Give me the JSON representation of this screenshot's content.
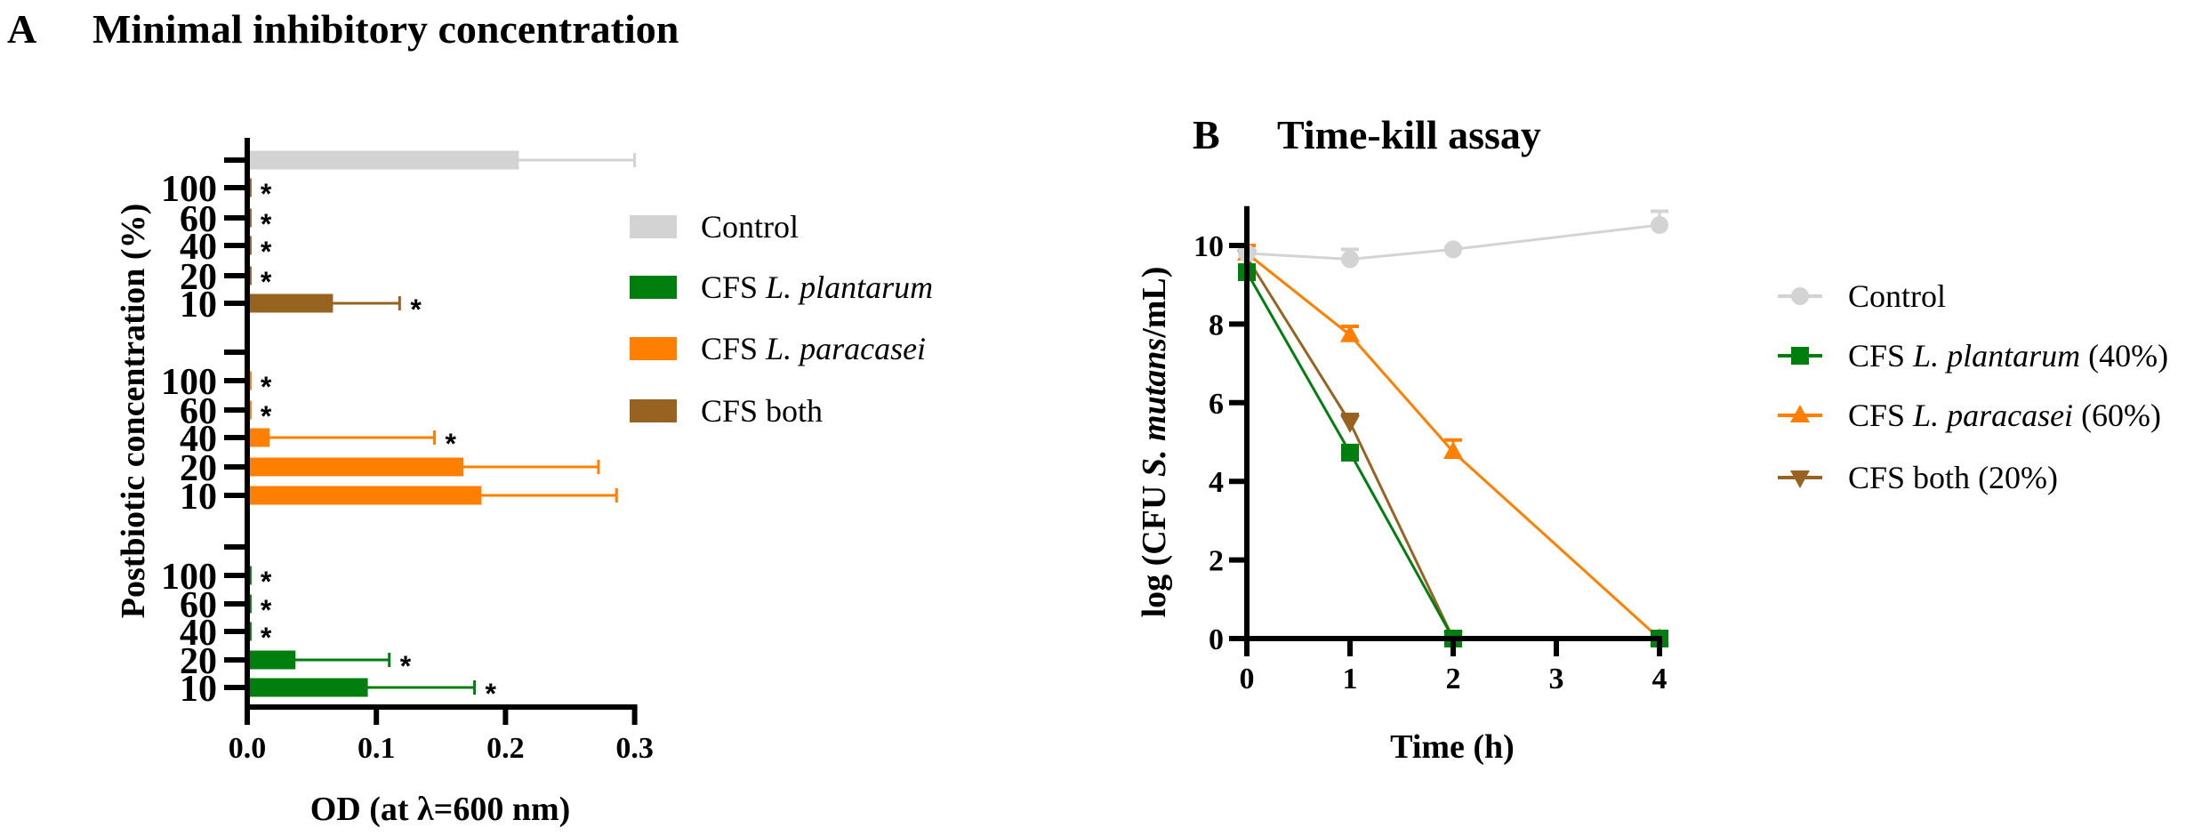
{
  "figure": {
    "panel_a_letter": "A",
    "panel_b_letter": "B"
  },
  "chart_data": [
    {
      "type": "bar",
      "orientation": "horizontal",
      "title": "Minimal inhibitory concentration",
      "xlabel": "OD (at λ=600 nm)",
      "ylabel": "Postbiotic concentration (%)",
      "xlim": [
        0,
        0.3
      ],
      "xticks": [
        "0.0",
        "0.1",
        "0.2",
        "0.3"
      ],
      "xtick_values": [
        0,
        0.1,
        0.2,
        0.3
      ],
      "legend_position": "right",
      "legend": [
        {
          "label_plain": "Control",
          "label_roman": "Control",
          "label_italic": "",
          "color": "#d3d3d3"
        },
        {
          "label_plain": "CFS L. plantarum",
          "label_roman": "CFS ",
          "label_italic": "L. plantarum",
          "color": "#007f0e"
        },
        {
          "label_plain": "CFS L. paracasei",
          "label_roman": "CFS ",
          "label_italic": "L. paracasei",
          "color": "#ff8000"
        },
        {
          "label_plain": "CFS both",
          "label_roman": "CFS both",
          "label_italic": "",
          "color": "#986320"
        }
      ],
      "groups": [
        {
          "series": "Control",
          "color": "#d3d3d3",
          "bars": [
            {
              "label": "",
              "value": 0.209,
              "error": 0.091,
              "significant": false
            }
          ]
        },
        {
          "series": "CFS both",
          "color": "#986320",
          "bars": [
            {
              "label": "100",
              "value": 0.002,
              "error": 0,
              "significant": true
            },
            {
              "label": "60",
              "value": 0.002,
              "error": 0,
              "significant": true
            },
            {
              "label": "40",
              "value": 0.002,
              "error": 0,
              "significant": true
            },
            {
              "label": "20",
              "value": 0.002,
              "error": 0,
              "significant": true
            },
            {
              "label": "10",
              "value": 0.065,
              "error": 0.053,
              "significant": true
            }
          ]
        },
        {
          "series": "CFS L. paracasei",
          "color": "#ff8000",
          "bars": [
            {
              "label": "100",
              "value": 0.002,
              "error": 0,
              "significant": true
            },
            {
              "label": "60",
              "value": 0.002,
              "error": 0,
              "significant": true
            },
            {
              "label": "40",
              "value": 0.016,
              "error": 0.129,
              "significant": true
            },
            {
              "label": "20",
              "value": 0.166,
              "error": 0.106,
              "significant": false
            },
            {
              "label": "10",
              "value": 0.18,
              "error": 0.106,
              "significant": false
            }
          ]
        },
        {
          "series": "CFS L. plantarum",
          "color": "#007f0e",
          "bars": [
            {
              "label": "100",
              "value": 0.002,
              "error": 0,
              "significant": true
            },
            {
              "label": "60",
              "value": 0.002,
              "error": 0,
              "significant": true
            },
            {
              "label": "40",
              "value": 0.002,
              "error": 0,
              "significant": true
            },
            {
              "label": "20",
              "value": 0.036,
              "error": 0.074,
              "significant": true
            },
            {
              "label": "10",
              "value": 0.092,
              "error": 0.084,
              "significant": true
            }
          ]
        }
      ],
      "significance_marker": "*"
    },
    {
      "type": "line",
      "title": "Time-kill assay",
      "xlabel": "Time (h)",
      "ylabel_parts": [
        "log (CFU ",
        "S. mutans",
        "/mL)"
      ],
      "ylabel": "log (CFU S. mutans/mL)",
      "xlim": [
        0,
        4
      ],
      "ylim": [
        0,
        11
      ],
      "xticks": [
        "0",
        "1",
        "2",
        "3",
        "4"
      ],
      "xtick_values": [
        0,
        1,
        2,
        3,
        4
      ],
      "yticks": [
        "0",
        "2",
        "4",
        "6",
        "8",
        "10"
      ],
      "ytick_values": [
        0,
        2,
        4,
        6,
        8,
        10
      ],
      "legend_position": "right",
      "series": [
        {
          "name": "Control",
          "label_roman": "Control",
          "label_italic": "",
          "label_suffix": "",
          "color": "#d3d3d3",
          "marker": "circle",
          "x": [
            0,
            1,
            2,
            4
          ],
          "y": [
            9.8,
            9.65,
            9.9,
            10.52
          ],
          "error": [
            0.1,
            0.25,
            0.05,
            0.35
          ]
        },
        {
          "name": "CFS L. plantarum (40%)",
          "label_roman": "CFS ",
          "label_italic": "L. plantarum",
          "label_suffix": " (40%)",
          "color": "#007f0e",
          "marker": "square",
          "x": [
            0,
            1,
            2,
            4
          ],
          "y": [
            9.32,
            4.73,
            0,
            0
          ],
          "error": [
            0,
            0,
            0,
            0
          ]
        },
        {
          "name": "CFS L. paracasei (60%)",
          "label_roman": "CFS ",
          "label_italic": "L. paracasei",
          "label_suffix": " (60%)",
          "color": "#ff8000",
          "marker": "triangle-up",
          "x": [
            0,
            1,
            2,
            4
          ],
          "y": [
            9.8,
            7.72,
            4.75,
            0
          ],
          "error": [
            0.2,
            0.22,
            0.3,
            0
          ]
        },
        {
          "name": "CFS both (20%)",
          "label_roman": "CFS both",
          "label_italic": "",
          "label_suffix": " (20%)",
          "color": "#986320",
          "marker": "triangle-down",
          "x": [
            0,
            1,
            2
          ],
          "y": [
            9.7,
            5.5,
            0
          ],
          "error": [
            0.15,
            0.2,
            0
          ]
        }
      ]
    }
  ]
}
